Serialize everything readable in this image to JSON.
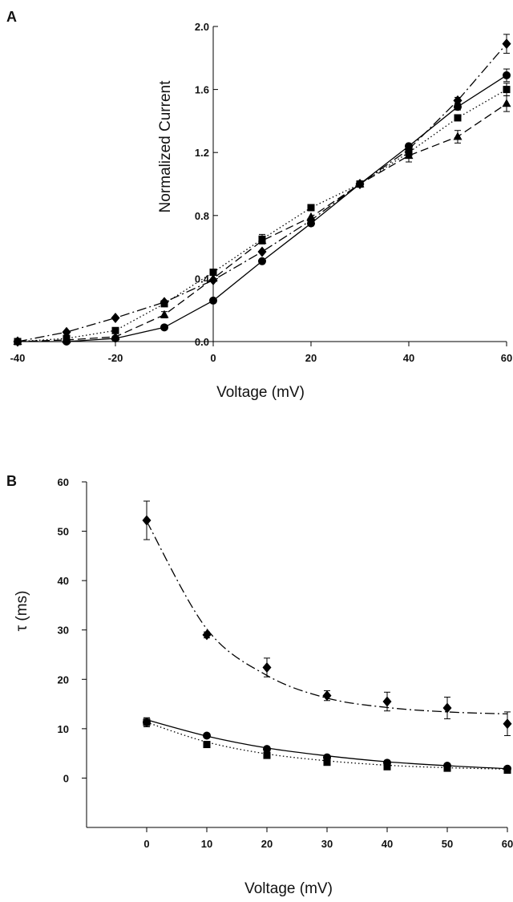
{
  "chart_data": [
    {
      "panel": "A",
      "type": "line",
      "xlabel": "Voltage (mV)",
      "ylabel": "Normalized Current",
      "xlim": [
        -40,
        60
      ],
      "ylim": [
        0.0,
        2.0
      ],
      "xticks": [
        "-40",
        "-20",
        "0",
        "20",
        "40",
        "60"
      ],
      "yticks": [
        "0.0",
        "0.4",
        "0.8",
        "1.2",
        "1.6",
        "2.0"
      ],
      "x": [
        -40,
        -30,
        -20,
        -10,
        0,
        10,
        20,
        30,
        40,
        50,
        60
      ],
      "series": [
        {
          "marker": "circle",
          "line": "solid",
          "values": [
            0.0,
            0.0,
            0.02,
            0.09,
            0.26,
            0.51,
            0.75,
            1.0,
            1.24,
            1.49,
            1.69
          ],
          "errors": [
            0,
            0,
            0,
            0,
            0,
            0,
            0,
            0,
            0,
            0.02,
            0.04
          ]
        },
        {
          "marker": "square",
          "line": "dotted",
          "values": [
            0.0,
            0.02,
            0.07,
            0.24,
            0.44,
            0.65,
            0.85,
            1.0,
            1.2,
            1.42,
            1.6
          ],
          "errors": [
            0,
            0,
            0,
            0,
            0,
            0.03,
            0,
            0,
            0.03,
            0,
            0.04
          ]
        },
        {
          "marker": "triangle",
          "line": "dashed",
          "values": [
            0.0,
            0.01,
            0.03,
            0.17,
            0.4,
            0.64,
            0.79,
            1.0,
            1.18,
            1.3,
            1.51
          ],
          "errors": [
            0,
            0,
            0,
            0.02,
            0,
            0.02,
            0,
            0,
            0.04,
            0.04,
            0.05
          ]
        },
        {
          "marker": "diamond",
          "line": "dashdot",
          "values": [
            0.0,
            0.06,
            0.15,
            0.25,
            0.39,
            0.57,
            0.77,
            1.0,
            1.22,
            1.53,
            1.89
          ],
          "errors": [
            0,
            0,
            0,
            0,
            0,
            0,
            0,
            0,
            0,
            0.02,
            0.06
          ]
        }
      ]
    },
    {
      "panel": "B",
      "type": "scatter",
      "xlabel": "Voltage (mV)",
      "ylabel": "τ (ms)",
      "xlim": [
        -10,
        60
      ],
      "ylim": [
        -10,
        60
      ],
      "xticks": [
        "0",
        "10",
        "20",
        "30",
        "40",
        "50",
        "60"
      ],
      "yticks": [
        "0",
        "10",
        "20",
        "30",
        "40",
        "50",
        "60"
      ],
      "x": [
        0,
        10,
        20,
        30,
        40,
        50,
        60
      ],
      "series": [
        {
          "marker": "diamond",
          "line": "dashdot",
          "values": [
            52.2,
            29.0,
            22.4,
            16.7,
            15.5,
            14.2,
            11.0
          ],
          "errors": [
            3.9,
            0.6,
            1.9,
            1.0,
            1.9,
            2.2,
            2.4
          ],
          "fit": [
            52.0,
            30.2,
            20.8,
            16.2,
            14.3,
            13.4,
            13.0
          ]
        },
        {
          "marker": "circle",
          "line": "solid",
          "values": [
            11.3,
            8.6,
            5.9,
            4.2,
            3.1,
            2.5,
            1.9
          ],
          "errors": [
            0.9,
            0.4,
            0.3,
            0.3,
            0.2,
            0.2,
            0.2
          ],
          "fit": [
            11.8,
            8.5,
            6.1,
            4.5,
            3.3,
            2.5,
            1.9
          ]
        },
        {
          "marker": "square",
          "line": "dotted",
          "values": [
            11.3,
            6.8,
            4.6,
            3.2,
            2.3,
            2.0,
            1.6
          ],
          "errors": [
            0.9,
            0.3,
            0.2,
            0.2,
            0.2,
            0.2,
            0.2
          ],
          "fit": [
            11.3,
            7.3,
            4.9,
            3.5,
            2.6,
            2.1,
            1.8
          ]
        }
      ]
    }
  ]
}
